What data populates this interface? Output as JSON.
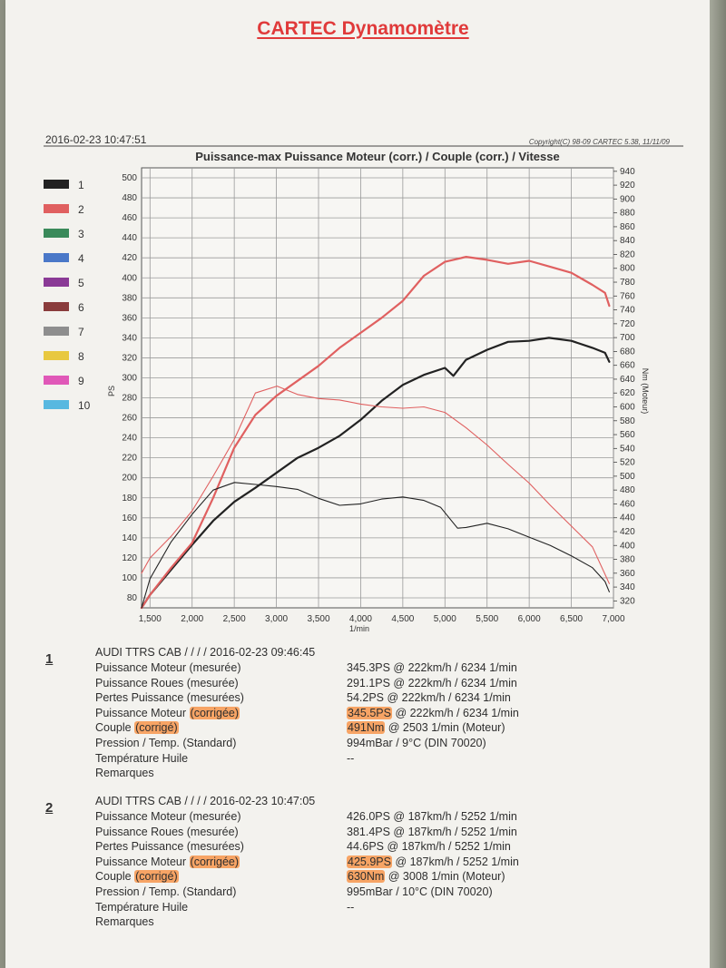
{
  "document": {
    "title": "CARTEC Dynamomètre"
  },
  "header": {
    "datetime": "2016-02-23 10:47:51",
    "copyright": "Copyright(C) 98-09 CARTEC 5.38, 11/11/09"
  },
  "chart_data": {
    "type": "line",
    "title": "Puissance-max Puissance Moteur (corr.) / Couple (corr.) / Vitesse",
    "xlabel": "1/min",
    "ylabel": "PS",
    "y2label": "Nm (Moteur)",
    "xlim": [
      1400,
      7000
    ],
    "ylim": [
      70,
      510
    ],
    "y2lim": [
      310,
      945
    ],
    "x_ticks": [
      1500,
      2000,
      2500,
      3000,
      3500,
      4000,
      4500,
      5000,
      5500,
      6000,
      6500,
      7000
    ],
    "x_tick_labels": [
      "1,500",
      "2,000",
      "2,500",
      "3,000",
      "3,500",
      "4,000",
      "4,500",
      "5,000",
      "5,500",
      "6,000",
      "6,500",
      "7,000"
    ],
    "y_ticks": [
      80,
      100,
      120,
      140,
      160,
      180,
      200,
      220,
      240,
      260,
      280,
      300,
      320,
      340,
      360,
      380,
      400,
      420,
      440,
      460,
      480,
      500
    ],
    "y2_ticks": [
      320,
      340,
      360,
      380,
      400,
      420,
      440,
      460,
      480,
      500,
      520,
      540,
      560,
      580,
      600,
      620,
      640,
      660,
      680,
      700,
      720,
      740,
      760,
      780,
      800,
      820,
      840,
      860,
      880,
      900,
      920,
      940
    ],
    "grid": true,
    "legend": {
      "position": "left",
      "entries": [
        {
          "label": "1",
          "color": "#222222"
        },
        {
          "label": "2",
          "color": "#e06060"
        },
        {
          "label": "3",
          "color": "#3a8a5a"
        },
        {
          "label": "4",
          "color": "#4a78c8"
        },
        {
          "label": "5",
          "color": "#8a3a96"
        },
        {
          "label": "6",
          "color": "#8a3c3c"
        },
        {
          "label": "7",
          "color": "#8e8e8e"
        },
        {
          "label": "8",
          "color": "#e8c840"
        },
        {
          "label": "9",
          "color": "#e058b8"
        },
        {
          "label": "10",
          "color": "#58b8e0"
        }
      ]
    },
    "series": [
      {
        "name": "1",
        "quantity": "power",
        "axis": "left",
        "color": "#222222",
        "width": 2.2,
        "x": [
          1400,
          1500,
          1750,
          2000,
          2250,
          2500,
          2750,
          3000,
          3250,
          3500,
          3750,
          4000,
          4250,
          4500,
          4750,
          5000,
          5100,
          5250,
          5500,
          5750,
          6000,
          6234,
          6500,
          6750,
          6900,
          6950
        ],
        "y": [
          70,
          83,
          108,
          133,
          157,
          176,
          190,
          205,
          220,
          230,
          242,
          258,
          277,
          293,
          303,
          310,
          302,
          318,
          328,
          336,
          337,
          340,
          337,
          330,
          325,
          316
        ]
      },
      {
        "name": "2",
        "quantity": "power",
        "axis": "left",
        "color": "#e06060",
        "width": 2.2,
        "x": [
          1400,
          1500,
          1750,
          2000,
          2250,
          2500,
          2750,
          3000,
          3250,
          3500,
          3750,
          4000,
          4250,
          4500,
          4750,
          5000,
          5252,
          5500,
          5750,
          6000,
          6250,
          6500,
          6750,
          6900,
          6950
        ],
        "y": [
          70,
          83,
          110,
          135,
          180,
          230,
          263,
          282,
          297,
          312,
          330,
          345,
          360,
          377,
          402,
          416,
          421,
          418,
          414,
          417,
          411,
          405,
          393,
          385,
          372
        ]
      },
      {
        "name": "1",
        "quantity": "torque",
        "axis": "right",
        "color": "#222222",
        "width": 1.1,
        "x": [
          1400,
          1500,
          1750,
          2000,
          2250,
          2503,
          2750,
          3000,
          3250,
          3500,
          3750,
          4000,
          4250,
          4500,
          4750,
          4950,
          5150,
          5250,
          5500,
          5750,
          6000,
          6250,
          6500,
          6750,
          6900,
          6950
        ],
        "y": [
          310,
          352,
          405,
          445,
          480,
          491,
          488,
          485,
          481,
          468,
          458,
          460,
          467,
          470,
          465,
          455,
          425,
          426,
          432,
          424,
          412,
          400,
          385,
          368,
          348,
          333
        ]
      },
      {
        "name": "2",
        "quantity": "torque",
        "axis": "right",
        "color": "#e06060",
        "width": 1.1,
        "x": [
          1400,
          1500,
          1750,
          2000,
          2250,
          2500,
          2750,
          3008,
          3250,
          3500,
          3750,
          4000,
          4250,
          4500,
          4750,
          5000,
          5250,
          5500,
          5750,
          6000,
          6250,
          6500,
          6750,
          6950
        ],
        "y": [
          360,
          382,
          413,
          450,
          500,
          553,
          620,
          630,
          618,
          612,
          610,
          604,
          600,
          598,
          600,
          592,
          570,
          545,
          517,
          490,
          458,
          428,
          398,
          345
        ]
      }
    ]
  },
  "results": [
    {
      "number": "1",
      "title": "AUDI TTRS CAB /  /  /  / 2016-02-23 09:46:45",
      "rows": [
        {
          "label": "Puissance Moteur (mesurée)",
          "value": "345.3PS @ 222km/h / 6234 1/min"
        },
        {
          "label": "Puissance Roues (mesurée)",
          "value": "291.1PS @ 222km/h / 6234 1/min"
        },
        {
          "label": "Pertes Puissance (mesurées)",
          "value": "54.2PS @ 222km/h / 6234 1/min"
        },
        {
          "label_a": "Puissance Moteur ",
          "label_hl": "(corrigée)",
          "value_hl": "345.5PS",
          "value_b": " @ 222km/h / 6234 1/min"
        },
        {
          "label_a": "Couple ",
          "label_hl": "(corrigé)",
          "value_hl": "491Nm",
          "value_b": " @ 2503 1/min (Moteur)"
        },
        {
          "label": "Pression / Temp. (Standard)",
          "value": "994mBar / 9°C    (DIN 70020)"
        },
        {
          "label": "Température Huile",
          "value": "--"
        },
        {
          "label": "Remarques",
          "value": ""
        }
      ]
    },
    {
      "number": "2",
      "title": "AUDI TTRS CAB /  /  /  / 2016-02-23 10:47:05",
      "rows": [
        {
          "label": "Puissance Moteur (mesurée)",
          "value": "426.0PS @ 187km/h / 5252 1/min"
        },
        {
          "label": "Puissance Roues (mesurée)",
          "value": "381.4PS @ 187km/h / 5252 1/min"
        },
        {
          "label": "Pertes Puissance (mesurées)",
          "value": "44.6PS @ 187km/h / 5252 1/min"
        },
        {
          "label_a": "Puissance Moteur ",
          "label_hl": "(corrigée)",
          "value_hl": "425.9PS",
          "value_b": " @ 187km/h / 5252 1/min"
        },
        {
          "label_a": "Couple ",
          "label_hl": "(corrigé)",
          "value_hl": "630Nm",
          "value_b": " @ 3008 1/min (Moteur)"
        },
        {
          "label": "Pression / Temp. (Standard)",
          "value": "995mBar / 10°C    (DIN 70020)"
        },
        {
          "label": "Température Huile",
          "value": "--"
        },
        {
          "label": "Remarques",
          "value": ""
        }
      ]
    }
  ]
}
